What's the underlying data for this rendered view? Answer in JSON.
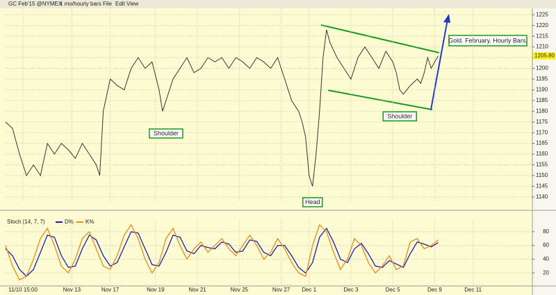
{
  "toolbar": {
    "symbol": "GC Feb'15 @NYMEX",
    "period": "1 mo/hourly bars",
    "menus": [
      "File",
      "Edit",
      "View"
    ]
  },
  "chart_data": [
    {
      "type": "line",
      "title": "Gold. February. Hourly Bars.",
      "annotations": [
        {
          "text": "Shoulder",
          "x": 46,
          "y": 1174
        },
        {
          "text": "Head",
          "x": 88,
          "y": 1140
        },
        {
          "text": "Shoulder",
          "x": 113,
          "y": 1182
        }
      ],
      "last_price": {
        "value": 1205.8,
        "label": "1205.80"
      },
      "series": [
        {
          "name": "GC Feb'15",
          "color": "#333333",
          "x": [
            0,
            2,
            4,
            6,
            8,
            10,
            12,
            14,
            16,
            18,
            20,
            22,
            24,
            26,
            27,
            28,
            30,
            32,
            34,
            36,
            38,
            40,
            42,
            44,
            45,
            46,
            48,
            50,
            52,
            54,
            56,
            58,
            60,
            62,
            64,
            66,
            68,
            70,
            72,
            74,
            76,
            78,
            80,
            82,
            84,
            85,
            86,
            87,
            88,
            89,
            90,
            91,
            92,
            93,
            95,
            97,
            99,
            101,
            103,
            105,
            107,
            109,
            111,
            112,
            113,
            114,
            116,
            118,
            119,
            120,
            121,
            122,
            123,
            124
          ],
          "values": [
            1175,
            1172,
            1160,
            1150,
            1155,
            1150,
            1165,
            1160,
            1165,
            1162,
            1158,
            1165,
            1160,
            1155,
            1150,
            1180,
            1195,
            1192,
            1190,
            1200,
            1205,
            1200,
            1203,
            1190,
            1180,
            1185,
            1195,
            1200,
            1205,
            1198,
            1200,
            1205,
            1203,
            1205,
            1200,
            1205,
            1203,
            1200,
            1205,
            1203,
            1200,
            1205,
            1195,
            1185,
            1180,
            1175,
            1168,
            1150,
            1145,
            1160,
            1180,
            1205,
            1218,
            1212,
            1205,
            1200,
            1195,
            1205,
            1210,
            1205,
            1200,
            1208,
            1203,
            1198,
            1190,
            1188,
            1192,
            1195,
            1193,
            1198,
            1205,
            1200,
            1203,
            1205.8
          ]
        }
      ],
      "xlim": [
        0,
        151
      ],
      "ylim": [
        1138,
        1228
      ],
      "yticks": [
        1140,
        1145,
        1150,
        1155,
        1160,
        1165,
        1170,
        1175,
        1180,
        1185,
        1190,
        1195,
        1200,
        1205,
        1210,
        1215,
        1220,
        1225
      ],
      "grid": true
    },
    {
      "type": "line",
      "title": "Stoch (14, 7, 7)",
      "x": [
        0,
        2,
        4,
        6,
        8,
        10,
        12,
        14,
        16,
        18,
        20,
        22,
        24,
        26,
        28,
        30,
        32,
        34,
        36,
        38,
        40,
        42,
        44,
        46,
        48,
        50,
        52,
        54,
        56,
        58,
        60,
        62,
        64,
        66,
        68,
        70,
        72,
        74,
        76,
        78,
        80,
        82,
        84,
        86,
        88,
        90,
        92,
        94,
        96,
        98,
        100,
        102,
        104,
        106,
        108,
        110,
        112,
        114,
        116,
        118,
        120,
        122,
        124
      ],
      "series": [
        {
          "name": "D%",
          "color": "#1c1cb0",
          "values": [
            55,
            45,
            25,
            15,
            25,
            50,
            75,
            72,
            45,
            28,
            30,
            55,
            75,
            68,
            45,
            30,
            35,
            58,
            80,
            78,
            55,
            32,
            30,
            50,
            75,
            72,
            52,
            48,
            60,
            57,
            55,
            65,
            62,
            50,
            52,
            68,
            66,
            50,
            45,
            60,
            60,
            45,
            28,
            20,
            35,
            72,
            85,
            65,
            40,
            35,
            55,
            63,
            48,
            30,
            28,
            38,
            33,
            28,
            48,
            65,
            62,
            58,
            64
          ]
        },
        {
          "name": "K%",
          "color": "#ee8a10",
          "values": [
            60,
            30,
            10,
            15,
            40,
            70,
            85,
            60,
            30,
            20,
            40,
            70,
            80,
            55,
            30,
            25,
            45,
            75,
            90,
            70,
            40,
            20,
            35,
            70,
            85,
            60,
            40,
            55,
            65,
            50,
            60,
            70,
            55,
            45,
            60,
            75,
            60,
            40,
            50,
            70,
            55,
            35,
            20,
            15,
            60,
            90,
            80,
            50,
            25,
            40,
            70,
            60,
            35,
            20,
            30,
            45,
            25,
            30,
            65,
            70,
            55,
            60,
            68
          ]
        }
      ],
      "xlim": [
        0,
        151
      ],
      "ylim": [
        3,
        98
      ],
      "yticks": [
        20,
        40,
        60,
        80
      ],
      "xticks": [
        {
          "value": 5,
          "label": "11/10 15:00"
        },
        {
          "value": 19,
          "label": "Nov 13"
        },
        {
          "value": 30,
          "label": "Nov 17"
        },
        {
          "value": 43,
          "label": "Nov 19"
        },
        {
          "value": 55,
          "label": "Nov 21"
        },
        {
          "value": 67,
          "label": "Nov 25"
        },
        {
          "value": 79,
          "label": "Nov 27"
        },
        {
          "value": 87,
          "label": "Dec 1"
        },
        {
          "value": 99,
          "label": "Dec 3"
        },
        {
          "value": 111,
          "label": "Dec 5"
        },
        {
          "value": 123,
          "label": "Dec 9"
        },
        {
          "value": 134,
          "label": "Dec 11"
        }
      ],
      "grid": true
    }
  ]
}
